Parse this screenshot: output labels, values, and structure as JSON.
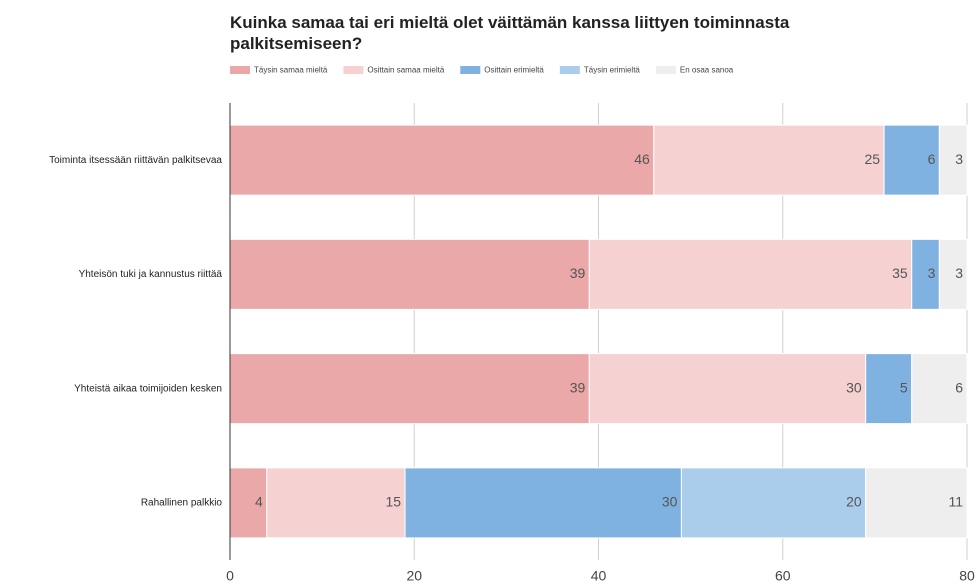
{
  "chart_data": {
    "type": "stacked_bar_horizontal",
    "title": "Kuinka samaa tai eri mieltä olet väittämän kanssa liittyen toiminnasta palkitsemiseen?",
    "categories": [
      "Toiminta itsessään riittävän palkitsevaa",
      "Yhteisön tuki ja kannustus riittää",
      "Yhteistä aikaa toimijoiden kesken",
      "Rahallinen palkkio"
    ],
    "series": [
      {
        "name": "Täysin samaa mieltä",
        "color": "#eaa9a8",
        "values": [
          46,
          39,
          39,
          4
        ]
      },
      {
        "name": "Osittain samaa mieltä",
        "color": "#f5d2d1",
        "values": [
          25,
          35,
          30,
          15
        ]
      },
      {
        "name": "Osittain erimieltä",
        "color": "#7fb2e1",
        "values": [
          6,
          3,
          5,
          30
        ]
      },
      {
        "name": "Täysin erimieltä",
        "color": "#abcdec",
        "values": [
          0,
          0,
          0,
          20
        ]
      },
      {
        "name": "En osaa sanoa",
        "color": "#eeeeee",
        "values": [
          3,
          3,
          6,
          11
        ]
      }
    ],
    "xlim": [
      0,
      80
    ],
    "xticks": [
      0,
      20,
      40,
      60,
      80
    ],
    "grid": true,
    "legend": "top"
  }
}
